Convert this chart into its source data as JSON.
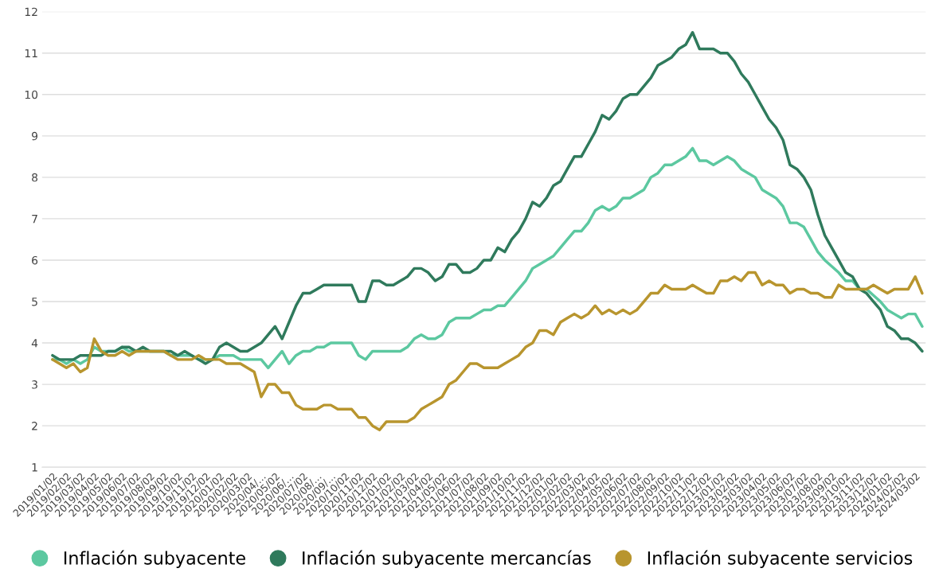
{
  "chart_data": {
    "type": "line",
    "categories": [
      "2019/01/02",
      null,
      "2019/02/02",
      null,
      "2019/03/02",
      null,
      "2019/04/02",
      null,
      "2019/05/02",
      null,
      "2019/06/02",
      null,
      "2019/07/02",
      null,
      "2019/08/02",
      null,
      "2019/09/02",
      null,
      "2019/10/02",
      null,
      "2019/11/02",
      null,
      "2019/12/02",
      null,
      "2020/01/02",
      null,
      "2020/02/02",
      null,
      "2020/03/02",
      null,
      "2020/04/…",
      null,
      "2020/05/02",
      null,
      "2020/06/…",
      null,
      "2020/07/02",
      null,
      "2020/08/…",
      null,
      "2020/09/…",
      null,
      "2020/10/02",
      null,
      "2020/11/02",
      null,
      "2020/12/02",
      null,
      "2021/01/02",
      null,
      "2021/02/02",
      null,
      "2021/03/02",
      null,
      "2021/04/02",
      null,
      "2021/05/02",
      null,
      "2021/06/02",
      null,
      "2021/07/02",
      null,
      "2021/08/02",
      null,
      "2021/09/02",
      null,
      "2021/10/02",
      null,
      "2021/11/02",
      null,
      "2021/12/02",
      null,
      "2022/01/02",
      null,
      "2022/02/02",
      null,
      "2022/03/02",
      null,
      "2022/04/02",
      null,
      "2022/05/02",
      null,
      "2022/06/02",
      null,
      "2022/07/02",
      null,
      "2022/08/02",
      null,
      "2022/09/02",
      null,
      "2022/10/02",
      null,
      "2022/11/02",
      null,
      "2022/12/02",
      null,
      "2023/01/02",
      null,
      "2023/02/02",
      null,
      "2023/03/02",
      null,
      "2023/04/02",
      null,
      "2023/05/02",
      null,
      "2023/06/02",
      null,
      "2023/07/02",
      null,
      "2023/08/02",
      null,
      "2023/09/02",
      null,
      "2023/10/02",
      null,
      "2023/11/02",
      null,
      "2023/12/02",
      null,
      "2024/01/02",
      null,
      "2024/02/02",
      null,
      "2024/03/02",
      null
    ],
    "series": [
      {
        "name": "Inflación subyacente",
        "color": "#5cc8a0",
        "values": [
          3.6,
          3.6,
          3.5,
          3.6,
          3.5,
          3.6,
          3.9,
          3.8,
          3.8,
          3.8,
          3.9,
          3.8,
          3.8,
          3.8,
          3.8,
          3.8,
          3.8,
          3.7,
          3.7,
          3.7,
          3.7,
          3.6,
          3.6,
          3.6,
          3.7,
          3.7,
          3.7,
          3.6,
          3.6,
          3.6,
          3.6,
          3.4,
          3.6,
          3.8,
          3.5,
          3.7,
          3.8,
          3.8,
          3.9,
          3.9,
          4.0,
          4.0,
          4.0,
          4.0,
          3.7,
          3.6,
          3.8,
          3.8,
          3.8,
          3.8,
          3.8,
          3.9,
          4.1,
          4.2,
          4.1,
          4.1,
          4.2,
          4.5,
          4.6,
          4.6,
          4.6,
          4.7,
          4.8,
          4.8,
          4.9,
          4.9,
          5.1,
          5.3,
          5.5,
          5.8,
          5.9,
          6.0,
          6.1,
          6.3,
          6.5,
          6.7,
          6.7,
          6.9,
          7.2,
          7.3,
          7.2,
          7.3,
          7.5,
          7.5,
          7.6,
          7.7,
          8.0,
          8.1,
          8.3,
          8.3,
          8.4,
          8.5,
          8.7,
          8.4,
          8.4,
          8.3,
          8.4,
          8.5,
          8.4,
          8.2,
          8.1,
          8.0,
          7.7,
          7.6,
          7.5,
          7.3,
          6.9,
          6.9,
          6.8,
          6.5,
          6.2,
          6.0,
          5.85,
          5.7,
          5.5,
          5.5,
          5.3,
          5.3,
          5.15,
          5.0,
          4.8,
          4.7,
          4.6,
          4.7,
          4.7,
          4.4
        ]
      },
      {
        "name": "Inflación subyacente mercancías",
        "color": "#2f7a5c",
        "values": [
          3.7,
          3.6,
          3.6,
          3.6,
          3.7,
          3.7,
          3.7,
          3.7,
          3.8,
          3.8,
          3.9,
          3.9,
          3.8,
          3.9,
          3.8,
          3.8,
          3.8,
          3.8,
          3.7,
          3.8,
          3.7,
          3.6,
          3.5,
          3.6,
          3.9,
          4.0,
          3.9,
          3.8,
          3.8,
          3.9,
          4.0,
          4.2,
          4.4,
          4.1,
          4.5,
          4.9,
          5.2,
          5.2,
          5.3,
          5.4,
          5.4,
          5.4,
          5.4,
          5.4,
          5.0,
          5.0,
          5.5,
          5.5,
          5.4,
          5.4,
          5.5,
          5.6,
          5.8,
          5.8,
          5.7,
          5.5,
          5.6,
          5.9,
          5.9,
          5.7,
          5.7,
          5.8,
          6.0,
          6.0,
          6.3,
          6.2,
          6.5,
          6.7,
          7.0,
          7.4,
          7.3,
          7.5,
          7.8,
          7.9,
          8.2,
          8.5,
          8.5,
          8.8,
          9.1,
          9.5,
          9.4,
          9.6,
          9.9,
          10.0,
          10.0,
          10.2,
          10.4,
          10.7,
          10.8,
          10.9,
          11.1,
          11.2,
          11.5,
          11.1,
          11.1,
          11.1,
          11.0,
          11.0,
          10.8,
          10.5,
          10.3,
          10.0,
          9.7,
          9.4,
          9.2,
          8.9,
          8.3,
          8.2,
          8.0,
          7.7,
          7.1,
          6.6,
          6.3,
          6.0,
          5.7,
          5.6,
          5.3,
          5.2,
          5.0,
          4.8,
          4.4,
          4.3,
          4.1,
          4.1,
          4.0,
          3.8
        ]
      },
      {
        "name": "Inflación subyacente servicios",
        "color": "#b8952e",
        "values": [
          3.6,
          3.5,
          3.4,
          3.5,
          3.3,
          3.4,
          4.1,
          3.8,
          3.7,
          3.7,
          3.8,
          3.7,
          3.8,
          3.8,
          3.8,
          3.8,
          3.8,
          3.7,
          3.6,
          3.6,
          3.6,
          3.7,
          3.6,
          3.6,
          3.6,
          3.5,
          3.5,
          3.5,
          3.4,
          3.3,
          2.7,
          3.0,
          3.0,
          2.8,
          2.8,
          2.5,
          2.4,
          2.4,
          2.4,
          2.5,
          2.5,
          2.4,
          2.4,
          2.4,
          2.2,
          2.2,
          2.0,
          1.9,
          2.1,
          2.1,
          2.1,
          2.1,
          2.2,
          2.4,
          2.5,
          2.6,
          2.7,
          3.0,
          3.1,
          3.3,
          3.5,
          3.5,
          3.4,
          3.4,
          3.4,
          3.5,
          3.6,
          3.7,
          3.9,
          4.0,
          4.3,
          4.3,
          4.2,
          4.5,
          4.6,
          4.7,
          4.6,
          4.7,
          4.9,
          4.7,
          4.8,
          4.7,
          4.8,
          4.7,
          4.8,
          5.0,
          5.2,
          5.2,
          5.4,
          5.3,
          5.3,
          5.3,
          5.4,
          5.3,
          5.2,
          5.2,
          5.5,
          5.5,
          5.6,
          5.5,
          5.7,
          5.7,
          5.4,
          5.5,
          5.4,
          5.4,
          5.2,
          5.3,
          5.3,
          5.2,
          5.2,
          5.1,
          5.1,
          5.4,
          5.3,
          5.3,
          5.3,
          5.3,
          5.4,
          5.3,
          5.2,
          5.3,
          5.3,
          5.3,
          5.6,
          5.2
        ]
      }
    ],
    "ylim": [
      1,
      12
    ],
    "yticks": [
      1,
      2,
      3,
      4,
      5,
      6,
      7,
      8,
      9,
      10,
      11,
      12
    ],
    "grid": "y",
    "legend": "bottom"
  }
}
